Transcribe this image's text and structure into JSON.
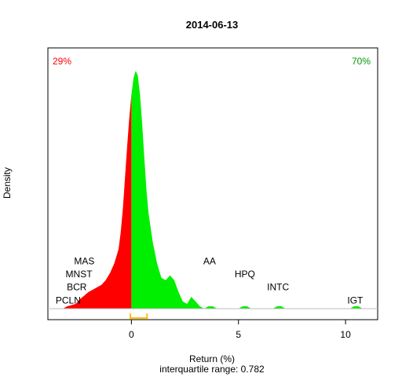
{
  "chart_data": {
    "type": "area",
    "title": "2014-06-13",
    "xlabel": "Return (%)",
    "ylabel": "Density",
    "subtitle": "interquartile range: 0.782",
    "xlim": [
      -3.9,
      11.5
    ],
    "ylim": [
      0,
      1.06
    ],
    "x_ticks": [
      0,
      5,
      10
    ],
    "x_tick_labels": [
      "0",
      "5",
      "10"
    ],
    "split_at": 0,
    "negative_share_label": "29%",
    "positive_share_label": "70%",
    "colors": {
      "negative": "#ff0000",
      "positive": "#00ee00",
      "baseline": "#bebebe",
      "iqr": "#ffbf00"
    },
    "iqr": [
      -0.05,
      0.73
    ],
    "density": {
      "x": [
        -3.2,
        -3.0,
        -2.8,
        -2.6,
        -2.4,
        -2.2,
        -2.0,
        -1.8,
        -1.6,
        -1.4,
        -1.2,
        -1.0,
        -0.8,
        -0.6,
        -0.5,
        -0.4,
        -0.3,
        -0.2,
        -0.1,
        0.0,
        0.1,
        0.2,
        0.3,
        0.4,
        0.5,
        0.6,
        0.7,
        0.8,
        1.0,
        1.2,
        1.4,
        1.6,
        1.8,
        2.0,
        2.2,
        2.4,
        2.6,
        2.8,
        3.0,
        3.2,
        3.4,
        3.6,
        3.8,
        4.0,
        5.0,
        5.2,
        5.4,
        5.6,
        6.0,
        6.6,
        6.8,
        7.0,
        7.2,
        7.6,
        10.2,
        10.4,
        10.6,
        10.8
      ],
      "y": [
        0.0,
        0.01,
        0.015,
        0.02,
        0.04,
        0.055,
        0.07,
        0.08,
        0.09,
        0.1,
        0.12,
        0.15,
        0.19,
        0.25,
        0.32,
        0.42,
        0.55,
        0.68,
        0.8,
        0.9,
        0.97,
        1.0,
        0.98,
        0.9,
        0.78,
        0.64,
        0.5,
        0.4,
        0.28,
        0.19,
        0.13,
        0.12,
        0.14,
        0.12,
        0.07,
        0.03,
        0.02,
        0.05,
        0.03,
        0.01,
        0.0,
        0.01,
        0.01,
        0.0,
        0.0,
        0.01,
        0.01,
        0.0,
        0.0,
        0.0,
        0.01,
        0.01,
        0.0,
        0.0,
        0.0,
        0.01,
        0.01,
        0.0
      ]
    },
    "annotations": [
      {
        "label": "MAS",
        "x": -2.2,
        "y": 0.2
      },
      {
        "label": "MNST",
        "x": -2.45,
        "y": 0.145
      },
      {
        "label": "BCR",
        "x": -2.55,
        "y": 0.09
      },
      {
        "label": "PCLN",
        "x": -2.95,
        "y": 0.035
      },
      {
        "label": "AA",
        "x": 3.65,
        "y": 0.2
      },
      {
        "label": "HPQ",
        "x": 5.3,
        "y": 0.145
      },
      {
        "label": "INTC",
        "x": 6.85,
        "y": 0.09
      },
      {
        "label": "IGT",
        "x": 10.45,
        "y": 0.035
      }
    ]
  }
}
